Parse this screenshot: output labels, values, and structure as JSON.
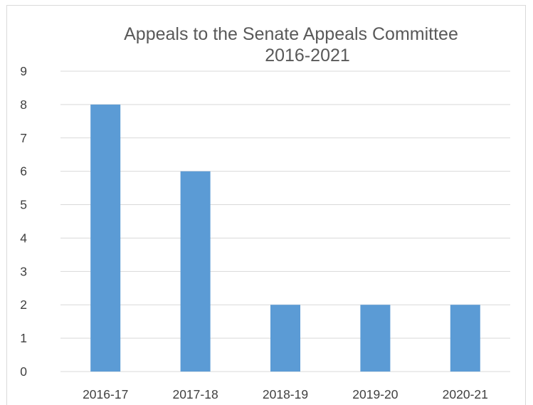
{
  "chart_data": {
    "type": "bar",
    "title_lines": [
      "Appeals to the Senate Appeals Committee",
      "2016-2021"
    ],
    "categories": [
      "2016-17",
      "2017-18",
      "2018-19",
      "2019-20",
      "2020-21"
    ],
    "values": [
      8,
      6,
      2,
      2,
      2
    ],
    "ylim": [
      0,
      9
    ],
    "yticks": [
      0,
      1,
      2,
      3,
      4,
      5,
      6,
      7,
      8,
      9
    ],
    "grid": true,
    "legend": "none",
    "bar_color": "#5b9bd5",
    "grid_color": "#d9d9d9"
  }
}
